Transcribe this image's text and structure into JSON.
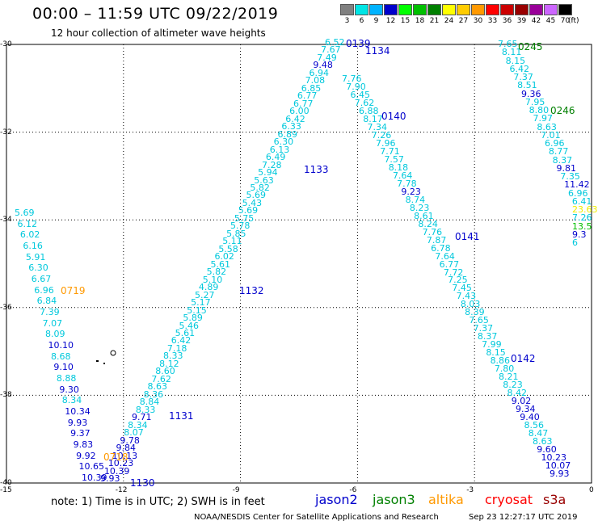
{
  "header": {
    "title": "00:00 – 11:59 UTC 09/22/2019",
    "subtitle": "12 hour collection of altimeter wave heights"
  },
  "color_scale": {
    "unit": "(ft)",
    "bins": [
      {
        "label": "3",
        "color": "#808080"
      },
      {
        "label": "6",
        "color": "#00e5e5"
      },
      {
        "label": "9",
        "color": "#00b3ff"
      },
      {
        "label": "12",
        "color": "#0000cc"
      },
      {
        "label": "15",
        "color": "#00ff00"
      },
      {
        "label": "18",
        "color": "#00c000"
      },
      {
        "label": "21",
        "color": "#008000"
      },
      {
        "label": "24",
        "color": "#ffff00"
      },
      {
        "label": "27",
        "color": "#ffcc00"
      },
      {
        "label": "30",
        "color": "#ff9900"
      },
      {
        "label": "33",
        "color": "#ff0000"
      },
      {
        "label": "36",
        "color": "#cc0000"
      },
      {
        "label": "39",
        "color": "#990000"
      },
      {
        "label": "42",
        "color": "#990099"
      },
      {
        "label": "45",
        "color": "#cc66ff"
      },
      {
        "label": "70",
        "color": "#000000"
      }
    ]
  },
  "axes": {
    "lat_ticks": [
      "-30",
      "-32",
      "-34",
      "-36",
      "-38",
      "-40"
    ],
    "lon_ticks": [
      "-15",
      "-12",
      "-9",
      "-6",
      "-3",
      "0"
    ]
  },
  "passes": [
    {
      "label": "0139",
      "color": "#0000cc"
    },
    {
      "label": "1134",
      "color": "#0000cc"
    },
    {
      "label": "0140",
      "color": "#0000cc"
    },
    {
      "label": "1133",
      "color": "#0000cc"
    },
    {
      "label": "0141",
      "color": "#0000cc"
    },
    {
      "label": "1132",
      "color": "#0000cc"
    },
    {
      "label": "0142",
      "color": "#0000cc"
    },
    {
      "label": "1131",
      "color": "#0000cc"
    },
    {
      "label": "1130",
      "color": "#0000cc"
    },
    {
      "label": "0245",
      "color": "#008000"
    },
    {
      "label": "0246",
      "color": "#008000"
    },
    {
      "label": "0719",
      "color": "#ff9900"
    },
    {
      "label": "0718",
      "color": "#ff9900"
    }
  ],
  "tracks": [
    {
      "name": "jason2-1130-1134",
      "color_hi": "#0000cc",
      "values": [
        "9.93",
        "10.39",
        "10.23",
        "10.13",
        "9.84",
        "9.78",
        "8.07",
        "8.34",
        "9.71",
        "8.33",
        "8.84",
        "8.36",
        "8.63",
        "7.62",
        "8.60",
        "8.12",
        "8.33",
        "7.18",
        "6.42",
        "5.61",
        "5.46",
        "5.89",
        "5.15",
        "5.17",
        "5.27",
        "4.89",
        "5.10",
        "5.82",
        "5.61",
        "6.02",
        "5.58",
        "5.11",
        "5.85",
        "5.78",
        "5.75",
        "5.69",
        "5.43",
        "5.69",
        "5.82",
        "5.63",
        "5.94",
        "7.28",
        "6.49",
        "6.13",
        "6.30",
        "6.89",
        "6.33",
        "6.42",
        "6.00",
        "6.77",
        "6.77",
        "6.85",
        "7.08",
        "6.94",
        "9.48",
        "7.49",
        "7.67",
        "6.52"
      ]
    },
    {
      "name": "jason2-0139-0142",
      "color_hi": "#0000cc",
      "values": [
        "7.76",
        "7.90",
        "6.45",
        "7.62",
        "6.88",
        "8.17",
        "7.34",
        "7.26",
        "7.96",
        "7.71",
        "7.57",
        "8.18",
        "7.64",
        "7.78",
        "9.23",
        "8.74",
        "8.23",
        "8.61",
        "8.24",
        "7.76",
        "7.87",
        "6.78",
        "7.64",
        "6.77",
        "7.72",
        "7.25",
        "7.45",
        "7.43",
        "8.03",
        "8.39",
        "7.65",
        "7.37",
        "8.37",
        "7.99",
        "8.15",
        "8.86",
        "7.80",
        "8.21",
        "8.23",
        "8.42",
        "9.02",
        "9.34",
        "9.40",
        "8.56",
        "8.47",
        "8.63",
        "9.60",
        "10.23",
        "10.07",
        "9.93"
      ]
    },
    {
      "name": "jason3-0245-0246",
      "color_hi": "#0000cc",
      "values": [
        "7.65",
        "8.11",
        "8.15",
        "6.42",
        "7.37",
        "8.51",
        "9.36",
        "7.95",
        "8.80",
        "7.97",
        "8.63",
        "7.01",
        "6.96",
        "8.77",
        "8.37",
        "9.81",
        "7.35",
        "11.42",
        "6.96",
        "6.41",
        "23.63",
        "7.26",
        "13.5",
        "9.3",
        "6"
      ]
    },
    {
      "name": "altika-0718-0719",
      "color_hi": "#0000cc",
      "values": [
        "5.69",
        "6.12",
        "6.02",
        "6.16",
        "5.91",
        "6.30",
        "6.67",
        "6.96",
        "6.84",
        "7.39",
        "7.07",
        "8.09",
        "10.10",
        "8.68",
        "9.10",
        "8.88",
        "9.30",
        "8.34",
        "10.34",
        "9.93",
        "9.37",
        "9.83",
        "9.92",
        "10.65",
        "10.39"
      ]
    }
  ],
  "footer": {
    "note": "note:  1) Time is in UTC;  2) SWH is in feet",
    "legend": [
      {
        "name": "jason2",
        "color": "#0000cc"
      },
      {
        "name": "jason3",
        "color": "#008000"
      },
      {
        "name": "altika",
        "color": "#ff9900"
      },
      {
        "name": "cryosat",
        "color": "#ff0000"
      },
      {
        "name": "s3a",
        "color": "#990000"
      }
    ],
    "credit": "NOAA/NESDIS Center for Satellite Applications and Research",
    "stamp": "Sep 23 12:27:17 UTC 2019"
  }
}
